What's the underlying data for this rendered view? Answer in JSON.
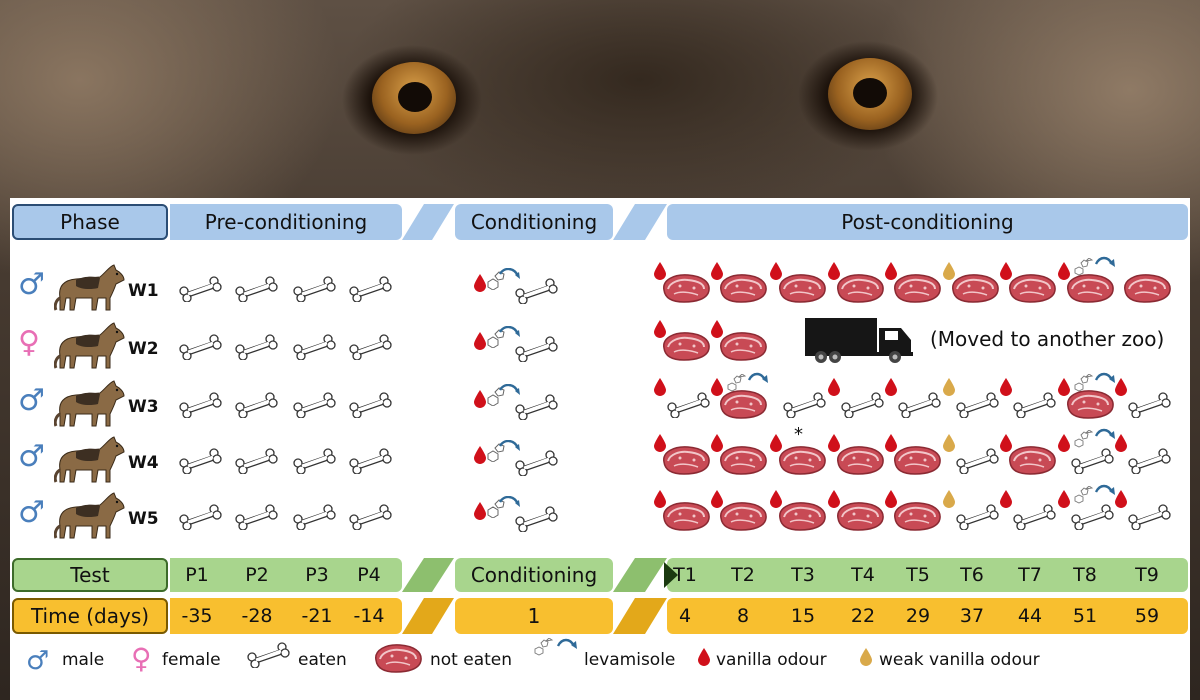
{
  "phase_row": {
    "label": "Phase",
    "pre": "Pre-conditioning",
    "conditioning": "Conditioning",
    "post": "Post-conditioning"
  },
  "test_row": {
    "label": "Test",
    "pre": [
      "P1",
      "P2",
      "P3",
      "P4"
    ],
    "conditioning": "Conditioning",
    "post": [
      "T1",
      "T2",
      "T3",
      "T4",
      "T5",
      "T6",
      "T7",
      "T8",
      "T9"
    ]
  },
  "time_row": {
    "label": "Time (days)",
    "pre": [
      "-35",
      "-28",
      "-21",
      "-14"
    ],
    "conditioning": "1",
    "post": [
      "4",
      "8",
      "15",
      "22",
      "29",
      "37",
      "44",
      "51",
      "59"
    ]
  },
  "wolves": [
    {
      "id": "W1",
      "sex": "male",
      "pre": [
        "eaten",
        "eaten",
        "eaten",
        "eaten"
      ],
      "post": [
        "vanilla-not",
        "vanilla-not",
        "vanilla-not",
        "vanilla-not",
        "vanilla-not",
        "weak-not",
        "vanilla-not",
        "vanilla-levamisole-not",
        "not"
      ]
    },
    {
      "id": "W2",
      "sex": "female",
      "pre": [
        "eaten",
        "eaten",
        "eaten",
        "eaten"
      ],
      "post": [
        "vanilla-not",
        "vanilla-not"
      ]
    },
    {
      "id": "W3",
      "sex": "male",
      "pre": [
        "eaten",
        "eaten",
        "eaten",
        "eaten"
      ],
      "post": [
        "vanilla-eaten",
        "vanilla-levamisole-not",
        "eaten",
        "vanilla-eaten",
        "vanilla-eaten",
        "weak-eaten",
        "vanilla-eaten",
        "vanilla-levamisole-not",
        "vanilla-eaten"
      ]
    },
    {
      "id": "W4",
      "sex": "male",
      "pre": [
        "eaten",
        "eaten",
        "eaten",
        "eaten"
      ],
      "post": [
        "vanilla-not",
        "vanilla-not",
        "vanilla-not-star",
        "vanilla-not",
        "vanilla-not",
        "weak-eaten",
        "vanilla-not",
        "vanilla-levamisole-eaten",
        "vanilla-eaten"
      ]
    },
    {
      "id": "W5",
      "sex": "male",
      "pre": [
        "eaten",
        "eaten",
        "eaten",
        "eaten"
      ],
      "post": [
        "vanilla-not",
        "vanilla-not",
        "vanilla-not",
        "vanilla-not",
        "vanilla-not",
        "weak-eaten",
        "vanilla-eaten",
        "vanilla-levamisole-eaten",
        "vanilla-eaten"
      ]
    }
  ],
  "annotation": {
    "asterisk": "*"
  },
  "moved_note": "(Moved to another zoo)",
  "legend": {
    "male": "male",
    "female": "female",
    "eaten": "eaten",
    "not_eaten": "not eaten",
    "levamisole": "levamisole",
    "vanilla": "vanilla odour",
    "weak_vanilla": "weak vanilla odour"
  },
  "symbols": {
    "male": "♂",
    "female": "♀"
  },
  "colors": {
    "phase_blue": "#a9c8ea",
    "test_green": "#a8d58d",
    "time_orange": "#f8bf2f",
    "male_blue": "#4a7fbc",
    "female_pink": "#e86fb5",
    "vanilla_red": "#d0101a",
    "weak_vanilla": "#d9a94a",
    "meat": "#c84a55",
    "arrow_blue": "#2f6a98"
  }
}
